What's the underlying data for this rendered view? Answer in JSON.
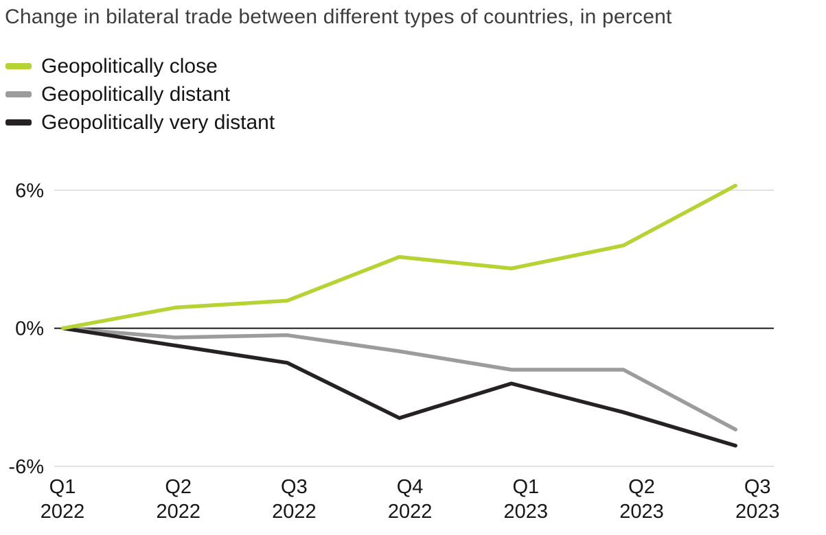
{
  "title": "Change in bilateral trade between different types of countries, in percent",
  "legend": {
    "items": [
      {
        "label": "Geopolitically close",
        "color": "#b5d434"
      },
      {
        "label": "Geopolitically distant",
        "color": "#9c9c9c"
      },
      {
        "label": "Geopolitically very distant",
        "color": "#262223"
      }
    ]
  },
  "chart_data": {
    "type": "line",
    "title": "Change in bilateral trade between different types of countries, in percent",
    "unit": "percent",
    "categories": [
      {
        "quarter": "Q1",
        "year": "2022"
      },
      {
        "quarter": "Q2",
        "year": "2022"
      },
      {
        "quarter": "Q3",
        "year": "2022"
      },
      {
        "quarter": "Q4",
        "year": "2022"
      },
      {
        "quarter": "Q1",
        "year": "2023"
      },
      {
        "quarter": "Q2",
        "year": "2023"
      },
      {
        "quarter": "Q3",
        "year": "2023"
      }
    ],
    "series": [
      {
        "name": "Geopolitically close",
        "color": "#b5d434",
        "values": [
          0,
          0.9,
          1.2,
          3.1,
          2.6,
          3.6,
          6.2
        ]
      },
      {
        "name": "Geopolitically distant",
        "color": "#9c9c9c",
        "values": [
          0,
          -0.4,
          -0.3,
          -1.0,
          -1.8,
          -1.8,
          -4.4
        ]
      },
      {
        "name": "Geopolitically very distant",
        "color": "#262223",
        "values": [
          0,
          -0.75,
          -1.5,
          -3.9,
          -2.4,
          -3.65,
          -5.1
        ]
      }
    ],
    "yticks": [
      {
        "value": 6,
        "label": "6%"
      },
      {
        "value": 0,
        "label": "0%"
      },
      {
        "value": -6,
        "label": "-6%"
      }
    ],
    "ylim": [
      -6,
      6.5
    ],
    "grid": "horizontal gridlines at +6% and -6%, solid axis line at 0%",
    "gridline_color": "#d8d8d8",
    "zero_line_color": "#1a1a1a",
    "legend_position": "top-left"
  }
}
